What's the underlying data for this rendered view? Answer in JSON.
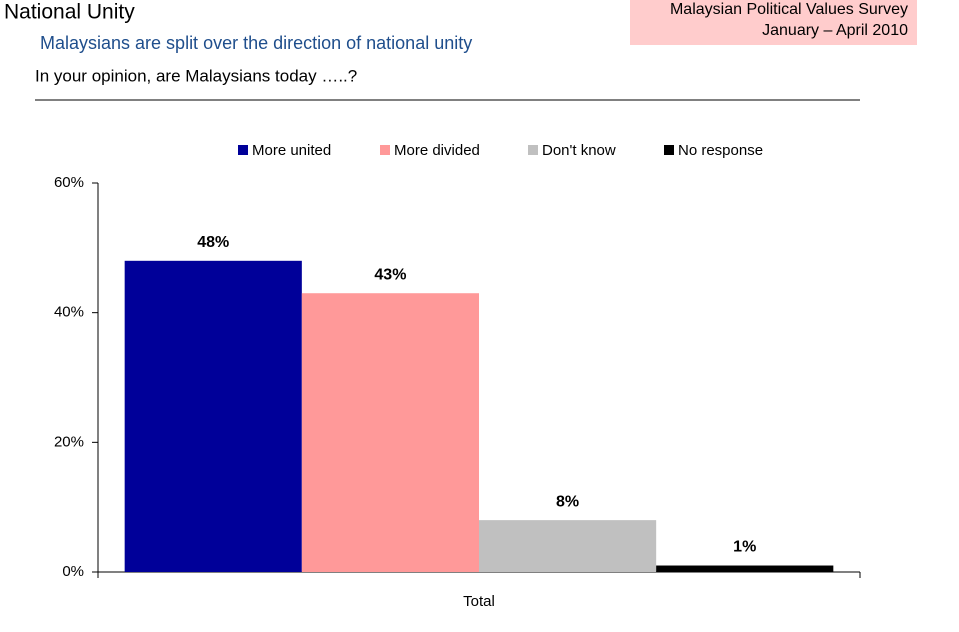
{
  "header": {
    "title": "National Unity",
    "subtitle": "Malaysians are split over the direction of national unity",
    "question": "In your opinion, are Malaysians today …..?",
    "survey_name": "Malaysian Political Values Survey",
    "survey_period": "January – April 2010"
  },
  "chart_data": {
    "type": "bar",
    "categories": [
      "Total"
    ],
    "series": [
      {
        "name": "More united",
        "color": "#000099",
        "values": [
          48
        ],
        "value_labels": [
          "48%"
        ]
      },
      {
        "name": "More divided",
        "color": "#ff9999",
        "values": [
          43
        ],
        "value_labels": [
          "43%"
        ]
      },
      {
        "name": "Don't know",
        "color": "#c0c0c0",
        "values": [
          8
        ],
        "value_labels": [
          "8%"
        ]
      },
      {
        "name": "No response",
        "color": "#000000",
        "values": [
          1
        ],
        "value_labels": [
          "1%"
        ]
      }
    ],
    "ylim": [
      0,
      60
    ],
    "yticks": [
      {
        "value": 0,
        "label": "0%"
      },
      {
        "value": 20,
        "label": "20%"
      },
      {
        "value": 40,
        "label": "40%"
      },
      {
        "value": 60,
        "label": "60%"
      }
    ],
    "legend": "top"
  }
}
